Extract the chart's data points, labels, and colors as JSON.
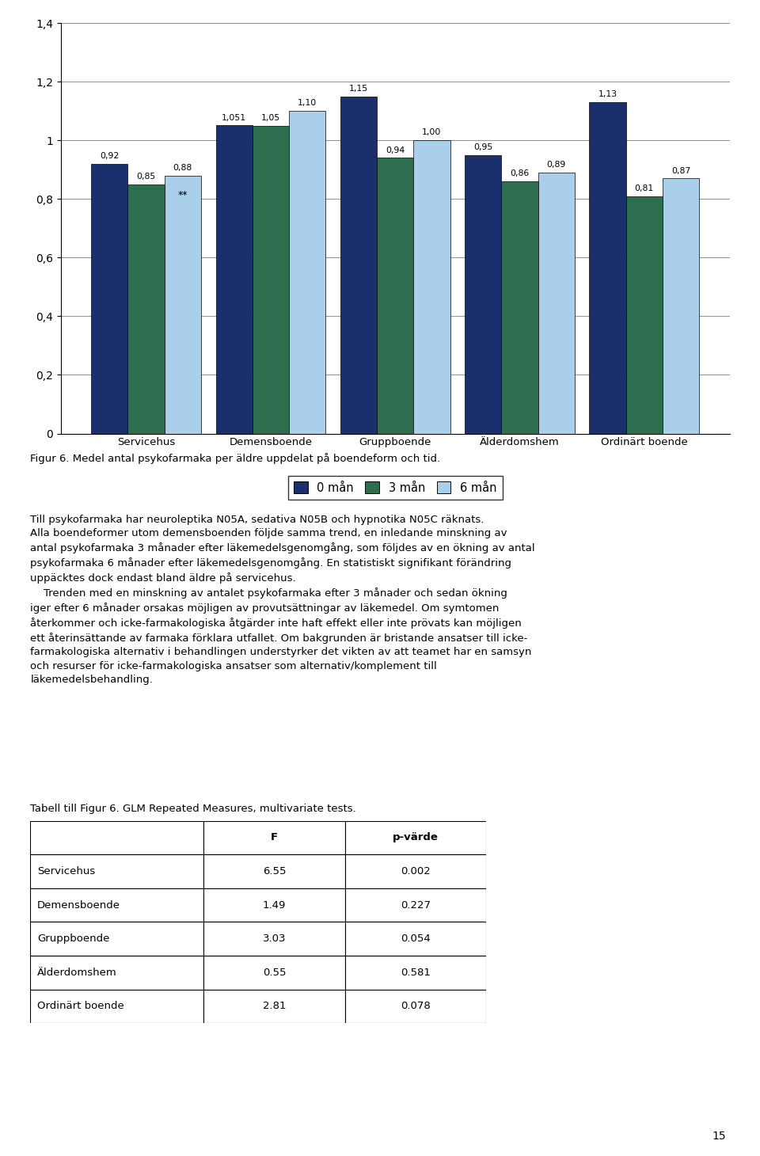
{
  "categories": [
    "Servicehus",
    "Demensboende",
    "Gruppboende",
    "Älderdomshem",
    "Ordinärt boende"
  ],
  "series": {
    "0 mån": [
      0.92,
      1.051,
      1.15,
      0.95,
      1.13
    ],
    "3 mån": [
      0.85,
      1.05,
      0.94,
      0.86,
      0.81
    ],
    "6 mån": [
      0.88,
      1.1,
      1.0,
      0.89,
      0.87
    ]
  },
  "bar_labels": {
    "0 mån": [
      "0,92",
      "1,051",
      "1,15",
      "0,95",
      "1,13"
    ],
    "3 mån": [
      "0,85",
      "1,05",
      "0,94",
      "0,86",
      "0,81"
    ],
    "6 mån": [
      "0,88",
      "1,10",
      "1,00",
      "0,89",
      "0,87"
    ]
  },
  "colors": {
    "0 mån": "#1a2f6b",
    "3 mån": "#2d6e4e",
    "6 mån": "#aacfea"
  },
  "ylim": [
    0,
    1.4
  ],
  "yticks": [
    0,
    0.2,
    0.4,
    0.6,
    0.8,
    1.0,
    1.2,
    1.4
  ],
  "yticklabels": [
    "0",
    "0,2",
    "0,4",
    "0,6",
    "0,8",
    "1",
    "1,2",
    "1,4"
  ],
  "figur_caption": "Figur 6. Medel antal psykofarmaka per äldre uppdelat på boendeform och tid.",
  "text_block": "Till psykofarmaka har neuroleptika N05A, sedativa N05B och hypnotika N05C räknats.\nAlla boendeformer utom demensboenden följde samma trend, en inledande minskning av\nantal psykofarmaka 3 månader efter läkemedelsgenomgång, som följdes av en ökning av antal\npsykofarmaka 6 månader efter läkemedelsgenomgång. En statistiskt signifikant förändring\nuppäcktes dock endast bland äldre på servicehus.\n    Trenden med en minskning av antalet psykofarmaka efter 3 månader och sedan ökning\niger efter 6 månader orsakas möjligen av provutsättningar av läkemedel. Om symtomen\nåterkommer och icke-farmakologiska åtgärder inte haft effekt eller inte prövats kan möjligen\nett återinsättande av farmaka förklara utfallet. Om bakgrunden är bristande ansatser till icke-\nfarmakologiska alternativ i behandlingen understyrker det vikten av att teamet har en samsyn\noch resurser för icke-farmakologiska ansatser som alternativ/komplement till\nläkemedelsbehandling.",
  "table_title": "Tabell till Figur 6. GLM Repeated Measures, multivariate tests.",
  "table_headers": [
    "",
    "F",
    "p-värde"
  ],
  "table_rows": [
    [
      "Servicehus",
      "6.55",
      "0.002"
    ],
    [
      "Demensboende",
      "1.49",
      "0.227"
    ],
    [
      "Gruppboende",
      "3.03",
      "0.054"
    ],
    [
      "Älderdomshem",
      "0.55",
      "0.581"
    ],
    [
      "Ordinärt boende",
      "2.81",
      "0.078"
    ]
  ],
  "page_number": "15"
}
